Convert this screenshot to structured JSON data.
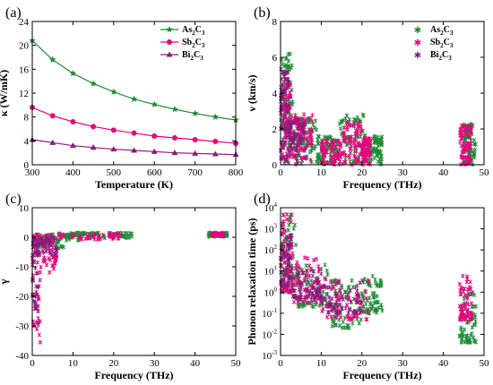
{
  "colors": {
    "green": "#1a8a33",
    "pink": "#e6007e",
    "purple": "#8b1a7a"
  },
  "chart_data": [
    {
      "panel": "(a)",
      "type": "line",
      "xlabel": "Temperature (K)",
      "ylabel": "κ (W/mK)",
      "xlim": [
        300,
        800
      ],
      "ylim": [
        0,
        24
      ],
      "xticks": [
        "300",
        "400",
        "500",
        "600",
        "700",
        "800"
      ],
      "yticks": [
        "0",
        "4",
        "8",
        "12",
        "16",
        "20",
        "24"
      ],
      "legend_position": "top-right",
      "x": [
        300,
        350,
        400,
        450,
        500,
        550,
        600,
        650,
        700,
        750,
        800
      ],
      "series": [
        {
          "name": "As",
          "sub1": "2",
          "mid": "C",
          "sub2": "3",
          "marker": "star",
          "color": "#1a8a33",
          "values": [
            20.8,
            17.6,
            15.3,
            13.6,
            12.2,
            11.0,
            10.1,
            9.3,
            8.6,
            8.0,
            7.5
          ]
        },
        {
          "name": "Sb",
          "sub1": "2",
          "mid": "C",
          "sub2": "3",
          "marker": "circle",
          "color": "#e6007e",
          "values": [
            9.6,
            8.2,
            7.2,
            6.4,
            5.8,
            5.3,
            4.8,
            4.5,
            4.2,
            3.9,
            3.6
          ]
        },
        {
          "name": "Bi",
          "sub1": "2",
          "mid": "C",
          "sub2": "3",
          "marker": "triangle",
          "color": "#8b1a7a",
          "values": [
            4.2,
            3.7,
            3.2,
            2.9,
            2.6,
            2.4,
            2.2,
            2.0,
            1.9,
            1.8,
            1.7
          ]
        }
      ]
    },
    {
      "panel": "(b)",
      "type": "scatter",
      "xlabel": "Frequency (THz)",
      "ylabel": "ν (km/s)",
      "xlim": [
        0,
        50
      ],
      "ylim": [
        0,
        8
      ],
      "xticks": [
        "0",
        "10",
        "20",
        "30",
        "40",
        "50"
      ],
      "yticks": [
        "0",
        "2",
        "4",
        "6",
        "8"
      ],
      "legend_position": "top-right",
      "series": [
        {
          "name": "As",
          "sub1": "2",
          "mid": "C",
          "sub2": "3",
          "color": "#1a8a33",
          "bands": [
            [
              0,
              3,
              0,
              6.2
            ],
            [
              3,
              9,
              0,
              2.6
            ],
            [
              9,
              14,
              0,
              1.6
            ],
            [
              14,
              21,
              0,
              2.8
            ],
            [
              21,
              25,
              0,
              1.6
            ],
            [
              45,
              48,
              0,
              2.4
            ]
          ]
        },
        {
          "name": "Sb",
          "sub1": "2",
          "mid": "C",
          "sub2": "3",
          "color": "#e6007e",
          "bands": [
            [
              0,
              2.5,
              0,
              4.6
            ],
            [
              2.5,
              8,
              0,
              2.9
            ],
            [
              10,
              15,
              0,
              1.4
            ],
            [
              15,
              20,
              0,
              2.4
            ],
            [
              20,
              22,
              0,
              1.6
            ],
            [
              44,
              47,
              0,
              2.2
            ]
          ]
        },
        {
          "name": "Bi",
          "sub1": "2",
          "mid": "C",
          "sub2": "3",
          "color": "#8b1a7a",
          "bands": [
            [
              0,
              2,
              0,
              5.4
            ],
            [
              2,
              6,
              0,
              2.6
            ]
          ]
        }
      ]
    },
    {
      "panel": "(c)",
      "type": "scatter",
      "xlabel": "Frequency (THz)",
      "ylabel": "γ",
      "xlim": [
        0,
        50
      ],
      "ylim": [
        -40,
        10
      ],
      "xticks": [
        "0",
        "10",
        "20",
        "30",
        "40",
        "50"
      ],
      "yticks": [
        "-40",
        "-30",
        "-20",
        "-10",
        "0",
        "10"
      ],
      "series": [
        {
          "name": "As",
          "color": "#1a8a33",
          "bands": [
            [
              0.5,
              8,
              -4,
              1.5
            ],
            [
              8,
              14,
              -1,
              1.5
            ],
            [
              14,
              25,
              -0.6,
              1.5
            ],
            [
              43,
              48,
              0.2,
              1.6
            ]
          ]
        },
        {
          "name": "Sb",
          "color": "#e6007e",
          "bands": [
            [
              0,
              2,
              -36,
              1
            ],
            [
              1.5,
              6,
              -12,
              1
            ],
            [
              6,
              22,
              -1,
              1.2
            ],
            [
              44,
              47,
              0.4,
              1.4
            ]
          ]
        },
        {
          "name": "Bi",
          "color": "#8b1a7a",
          "bands": [
            [
              0,
              1.5,
              -30,
              0
            ],
            [
              1.5,
              6,
              -6,
              1
            ]
          ]
        }
      ]
    },
    {
      "panel": "(d)",
      "type": "scatter",
      "log_scale_y": true,
      "xlabel": "Frequency (THz)",
      "ylabel": "Phonon relaxation time (ps)",
      "xlim": [
        0,
        50
      ],
      "ylim": [
        0.001,
        10000
      ],
      "xticks": [
        "0",
        "10",
        "20",
        "30",
        "40",
        "50"
      ],
      "yticks": [
        {
          "b": "10",
          "e": "-3"
        },
        {
          "b": "10",
          "e": "-2"
        },
        {
          "b": "10",
          "e": "-1"
        },
        {
          "b": "10",
          "e": "0"
        },
        {
          "b": "10",
          "e": "1"
        },
        {
          "b": "10",
          "e": "2"
        },
        {
          "b": "10",
          "e": "3"
        },
        {
          "b": "10",
          "e": "4"
        }
      ],
      "series": [
        {
          "name": "As",
          "color": "#1a8a33",
          "bands": [
            [
              0,
              4,
              1,
              5000
            ],
            [
              4,
              12,
              0.2,
              20
            ],
            [
              12,
              20,
              0.02,
              5
            ],
            [
              20,
              25,
              0.1,
              6
            ],
            [
              44,
              48,
              0.004,
              1
            ]
          ]
        },
        {
          "name": "Sb",
          "color": "#e6007e",
          "bands": [
            [
              0,
              3,
              1,
              5000
            ],
            [
              3,
              10,
              0.3,
              50
            ],
            [
              10,
              22,
              0.05,
              5
            ],
            [
              44,
              47,
              0.05,
              6
            ]
          ]
        },
        {
          "name": "Bi",
          "color": "#8b1a7a",
          "bands": [
            [
              0,
              3,
              2,
              800
            ],
            [
              3,
              10,
              0.5,
              10
            ],
            [
              10,
              20,
              0.1,
              3
            ]
          ]
        }
      ]
    }
  ]
}
